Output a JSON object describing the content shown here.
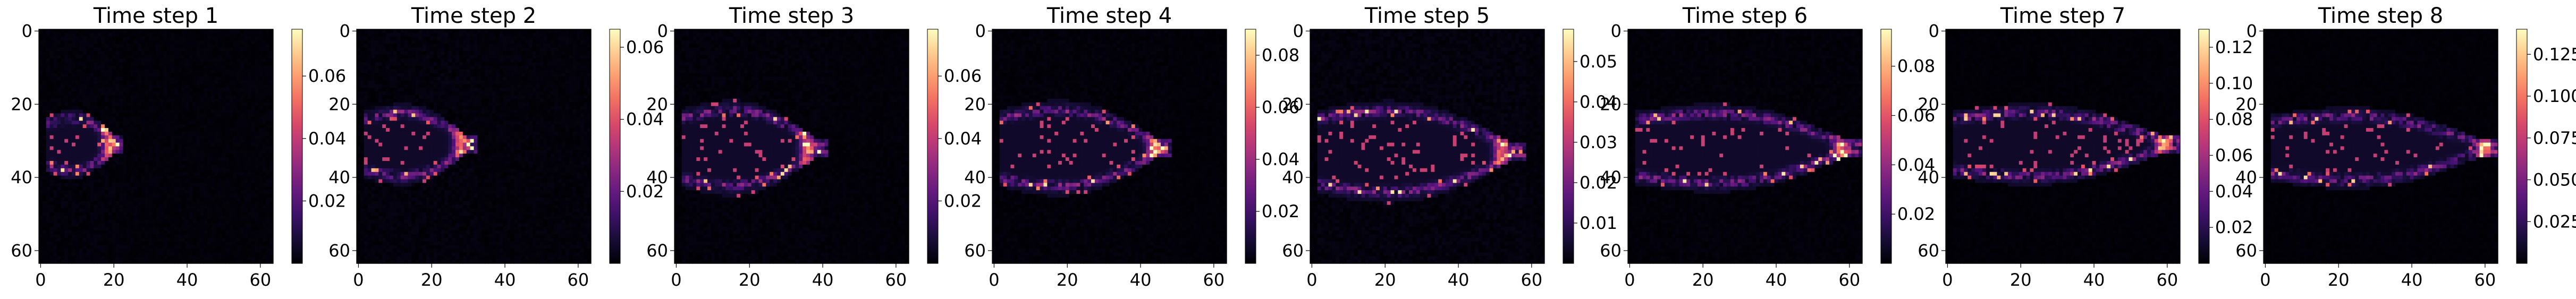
{
  "chart_data": {
    "type": "heatmap",
    "colormap": "magma",
    "grid": false,
    "xlim": [
      0,
      63
    ],
    "ylim": [
      63,
      0
    ],
    "x_ticks": [
      "0",
      "20",
      "40",
      "60"
    ],
    "y_ticks": [
      "0",
      "20",
      "40",
      "60"
    ],
    "panels": [
      {
        "title": "Time step 1",
        "cbar_ticks": [
          "0.02",
          "0.04",
          "0.06"
        ],
        "cbar_tick_values": [
          0.02,
          0.04,
          0.06
        ],
        "vmin": 0.0,
        "vmax": 0.075,
        "plume": {
          "x_start": 2,
          "x_tip": 21,
          "y_center": 31,
          "half_width": 9,
          "peak": 0.07,
          "front_x": 19
        }
      },
      {
        "title": "Time step 2",
        "cbar_ticks": [
          "0.02",
          "0.04",
          "0.06"
        ],
        "cbar_tick_values": [
          0.02,
          0.04,
          0.06
        ],
        "vmin": 0.0,
        "vmax": 0.065,
        "plume": {
          "x_start": 2,
          "x_tip": 31,
          "y_center": 31,
          "half_width": 11,
          "peak": 0.06,
          "front_x": 28
        }
      },
      {
        "title": "Time step 3",
        "cbar_ticks": [
          "0.02",
          "0.04",
          "0.06"
        ],
        "cbar_tick_values": [
          0.02,
          0.04,
          0.06
        ],
        "vmin": 0.0,
        "vmax": 0.075,
        "plume": {
          "x_start": 2,
          "x_tip": 40,
          "y_center": 32,
          "half_width": 13,
          "peak": 0.07,
          "front_x": 36
        }
      },
      {
        "title": "Time step 4",
        "cbar_ticks": [
          "0.02",
          "0.04",
          "0.06",
          "0.08"
        ],
        "cbar_tick_values": [
          0.02,
          0.04,
          0.06,
          0.08
        ],
        "vmin": 0.0,
        "vmax": 0.09,
        "plume": {
          "x_start": 2,
          "x_tip": 47,
          "y_center": 32,
          "half_width": 13,
          "peak": 0.085,
          "front_x": 44
        }
      },
      {
        "title": "Time step 5",
        "cbar_ticks": [
          "0.01",
          "0.02",
          "0.03",
          "0.04",
          "0.05"
        ],
        "cbar_tick_values": [
          0.01,
          0.02,
          0.03,
          0.04,
          0.05
        ],
        "vmin": 0.0,
        "vmax": 0.058,
        "plume": {
          "x_start": 2,
          "x_tip": 57,
          "y_center": 33,
          "half_width": 14,
          "peak": 0.055,
          "front_x": 52
        }
      },
      {
        "title": "Time step 6",
        "cbar_ticks": [
          "0.02",
          "0.04",
          "0.06",
          "0.08"
        ],
        "cbar_tick_values": [
          0.02,
          0.04,
          0.06,
          0.08
        ],
        "vmin": 0.0,
        "vmax": 0.095,
        "plume": {
          "x_start": 2,
          "x_tip": 62,
          "y_center": 32,
          "half_width": 12,
          "peak": 0.09,
          "front_x": 58
        }
      },
      {
        "title": "Time step 7",
        "cbar_ticks": [
          "0.02",
          "0.04",
          "0.06",
          "0.08",
          "0.10",
          "0.12"
        ],
        "cbar_tick_values": [
          0.02,
          0.04,
          0.06,
          0.08,
          0.1,
          0.12
        ],
        "vmin": 0.0,
        "vmax": 0.13,
        "plume": {
          "x_start": 2,
          "x_tip": 62,
          "y_center": 31,
          "half_width": 11,
          "peak": 0.12,
          "front_x": 59
        }
      },
      {
        "title": "Time step 8",
        "cbar_ticks": [
          "0.025",
          "0.050",
          "0.075",
          "0.100",
          "0.125"
        ],
        "cbar_tick_values": [
          0.025,
          0.05,
          0.075,
          0.1,
          0.125
        ],
        "vmin": 0.0,
        "vmax": 0.14,
        "plume": {
          "x_start": 2,
          "x_tip": 62,
          "y_center": 32,
          "half_width": 11,
          "peak": 0.13,
          "front_x": 60
        }
      }
    ]
  }
}
